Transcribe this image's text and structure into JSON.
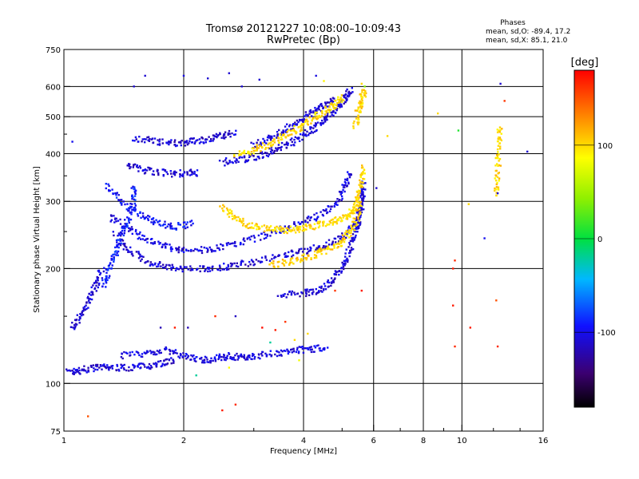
{
  "chart_data": {
    "type": "scatter",
    "title": "Tromsø 20121227 10:08:00–10:09:43",
    "subtitle": "RwPretec (Bp)",
    "xlabel": "Frequency [MHz]",
    "ylabel": "Stationary phase Virtual Height [km]",
    "x_scale": "log",
    "y_scale": "log",
    "xlim": [
      1,
      16
    ],
    "ylim": [
      75,
      750
    ],
    "x_ticks": [
      1,
      2,
      4,
      6,
      8,
      10,
      16
    ],
    "x_tick_labels": [
      "1",
      "2",
      "4",
      "6",
      "8",
      "10",
      "16"
    ],
    "y_ticks": [
      75,
      100,
      200,
      300,
      400,
      500,
      600,
      750
    ],
    "y_tick_labels": [
      "75",
      "100",
      "200",
      "300",
      "400",
      "500",
      "600",
      "750"
    ],
    "grid": true,
    "stats": {
      "heading": "Phases",
      "o_line": "mean, sd,O: -89.4, 17.2",
      "x_line": "mean, sd,X: 85.1, 21.0"
    },
    "colorbar": {
      "label": "[deg]",
      "range": [
        -180,
        180
      ],
      "ticks": [
        100,
        0,
        -100
      ],
      "tick_labels": [
        "100",
        "0",
        "-100"
      ]
    },
    "traces": [
      {
        "phase": -110,
        "points": [
          [
            1.03,
            107
          ],
          [
            1.1,
            108
          ],
          [
            1.2,
            110
          ],
          [
            1.3,
            110
          ],
          [
            1.45,
            110
          ],
          [
            1.6,
            111
          ],
          [
            1.75,
            113
          ],
          [
            1.9,
            115
          ]
        ]
      },
      {
        "phase": -105,
        "points": [
          [
            1.4,
            118
          ],
          [
            1.6,
            120
          ],
          [
            1.8,
            122
          ],
          [
            2.0,
            118
          ],
          [
            2.2,
            115
          ],
          [
            2.4,
            116
          ],
          [
            2.6,
            118
          ],
          [
            2.8,
            117
          ],
          [
            3.0,
            118
          ],
          [
            3.4,
            120
          ],
          [
            3.8,
            122
          ],
          [
            4.2,
            123
          ],
          [
            4.6,
            124
          ]
        ]
      },
      {
        "phase": -110,
        "points": [
          [
            1.05,
            140
          ],
          [
            1.1,
            150
          ],
          [
            1.15,
            165
          ],
          [
            1.2,
            180
          ],
          [
            1.25,
            200
          ]
        ]
      },
      {
        "phase": -110,
        "points": [
          [
            1.35,
            245
          ],
          [
            1.45,
            225
          ],
          [
            1.6,
            210
          ],
          [
            1.8,
            202
          ],
          [
            2.0,
            199
          ],
          [
            2.3,
            200
          ],
          [
            2.6,
            203
          ],
          [
            3.0,
            208
          ],
          [
            3.5,
            215
          ],
          [
            4.0,
            222
          ],
          [
            4.5,
            230
          ],
          [
            5.0,
            242
          ],
          [
            5.4,
            260
          ],
          [
            5.6,
            290
          ],
          [
            5.7,
            330
          ]
        ]
      },
      {
        "phase": -105,
        "points": [
          [
            1.3,
            275
          ],
          [
            1.45,
            255
          ],
          [
            1.6,
            238
          ],
          [
            1.8,
            228
          ],
          [
            2.0,
            223
          ],
          [
            2.3,
            224
          ],
          [
            2.6,
            230
          ],
          [
            3.0,
            240
          ],
          [
            3.5,
            252
          ],
          [
            4.0,
            265
          ],
          [
            4.5,
            280
          ],
          [
            4.9,
            300
          ],
          [
            5.1,
            330
          ],
          [
            5.25,
            360
          ]
        ]
      },
      {
        "phase": -95,
        "points": [
          [
            1.28,
            330
          ],
          [
            1.4,
            300
          ],
          [
            1.55,
            278
          ],
          [
            1.7,
            265
          ],
          [
            1.9,
            258
          ],
          [
            2.1,
            262
          ]
        ]
      },
      {
        "phase": -110,
        "points": [
          [
            1.45,
            375
          ],
          [
            1.6,
            362
          ],
          [
            1.8,
            355
          ],
          [
            2.0,
            355
          ],
          [
            2.2,
            357
          ]
        ]
      },
      {
        "phase": -110,
        "points": [
          [
            1.5,
            440
          ],
          [
            1.7,
            430
          ],
          [
            1.9,
            426
          ],
          [
            2.1,
            430
          ],
          [
            2.3,
            435
          ],
          [
            2.5,
            445
          ],
          [
            2.7,
            455
          ]
        ]
      },
      {
        "phase": -110,
        "points": [
          [
            2.5,
            380
          ],
          [
            2.8,
            385
          ],
          [
            3.1,
            395
          ],
          [
            3.4,
            410
          ],
          [
            3.7,
            425
          ],
          [
            4.0,
            445
          ],
          [
            4.3,
            470
          ],
          [
            4.6,
            500
          ],
          [
            4.9,
            530
          ],
          [
            5.1,
            560
          ],
          [
            5.25,
            590
          ]
        ]
      },
      {
        "phase": -110,
        "points": [
          [
            3.0,
            420
          ],
          [
            3.3,
            440
          ],
          [
            3.6,
            462
          ],
          [
            3.9,
            487
          ],
          [
            4.2,
            512
          ],
          [
            4.5,
            535
          ],
          [
            4.8,
            555
          ]
        ]
      },
      {
        "phase": -110,
        "points": [
          [
            3.5,
            170
          ],
          [
            4.0,
            172
          ],
          [
            4.4,
            175
          ],
          [
            4.7,
            185
          ],
          [
            5.0,
            200
          ],
          [
            5.2,
            220
          ],
          [
            5.4,
            245
          ],
          [
            5.5,
            270
          ],
          [
            5.6,
            300
          ],
          [
            5.65,
            340
          ]
        ]
      },
      {
        "phase": -90,
        "points": [
          [
            1.25,
            180
          ],
          [
            1.3,
            200
          ],
          [
            1.35,
            220
          ],
          [
            1.4,
            245
          ],
          [
            1.45,
            270
          ],
          [
            1.5,
            300
          ],
          [
            1.5,
            330
          ]
        ]
      },
      {
        "phase": 100,
        "points": [
          [
            2.5,
            290
          ],
          [
            2.7,
            272
          ],
          [
            2.9,
            260
          ],
          [
            3.2,
            254
          ],
          [
            3.5,
            252
          ],
          [
            3.8,
            253
          ],
          [
            4.1,
            257
          ],
          [
            4.5,
            262
          ],
          [
            4.9,
            268
          ],
          [
            5.2,
            275
          ],
          [
            5.4,
            290
          ],
          [
            5.5,
            310
          ],
          [
            5.6,
            340
          ],
          [
            5.65,
            370
          ]
        ]
      },
      {
        "phase": 105,
        "points": [
          [
            3.3,
            205
          ],
          [
            3.7,
            208
          ],
          [
            4.1,
            214
          ],
          [
            4.5,
            222
          ],
          [
            4.9,
            232
          ],
          [
            5.2,
            246
          ],
          [
            5.45,
            268
          ],
          [
            5.6,
            300
          ]
        ]
      },
      {
        "phase": 100,
        "points": [
          [
            2.7,
            395
          ],
          [
            3.0,
            410
          ],
          [
            3.3,
            425
          ],
          [
            3.6,
            445
          ],
          [
            3.9,
            468
          ],
          [
            4.2,
            492
          ],
          [
            4.5,
            515
          ],
          [
            4.8,
            540
          ],
          [
            5.0,
            560
          ]
        ]
      },
      {
        "phase": 100,
        "points": [
          [
            5.4,
            470
          ],
          [
            5.5,
            520
          ],
          [
            5.6,
            560
          ],
          [
            5.7,
            590
          ]
        ]
      },
      {
        "phase": 100,
        "points": [
          [
            12.2,
            310
          ],
          [
            12.3,
            360
          ],
          [
            12.4,
            420
          ],
          [
            12.45,
            470
          ]
        ]
      }
    ],
    "scatter_points": [
      {
        "x": 1.05,
        "y": 430,
        "phase": -100
      },
      {
        "x": 1.5,
        "y": 600,
        "phase": -110
      },
      {
        "x": 1.6,
        "y": 640,
        "phase": -110
      },
      {
        "x": 2.0,
        "y": 640,
        "phase": -105
      },
      {
        "x": 2.3,
        "y": 630,
        "phase": -110
      },
      {
        "x": 2.6,
        "y": 650,
        "phase": -110
      },
      {
        "x": 2.8,
        "y": 600,
        "phase": -110
      },
      {
        "x": 3.1,
        "y": 625,
        "phase": -110
      },
      {
        "x": 4.3,
        "y": 640,
        "phase": -105
      },
      {
        "x": 4.5,
        "y": 620,
        "phase": 90
      },
      {
        "x": 5.6,
        "y": 610,
        "phase": 100
      },
      {
        "x": 5.7,
        "y": 600,
        "phase": 40
      },
      {
        "x": 4.8,
        "y": 175,
        "phase": 160
      },
      {
        "x": 5.6,
        "y": 175,
        "phase": 170
      },
      {
        "x": 1.9,
        "y": 140,
        "phase": 170
      },
      {
        "x": 2.05,
        "y": 140,
        "phase": -120
      },
      {
        "x": 2.4,
        "y": 150,
        "phase": 165
      },
      {
        "x": 2.7,
        "y": 150,
        "phase": -115
      },
      {
        "x": 3.15,
        "y": 140,
        "phase": 175
      },
      {
        "x": 3.4,
        "y": 138,
        "phase": 170
      },
      {
        "x": 3.6,
        "y": 145,
        "phase": 160
      },
      {
        "x": 3.3,
        "y": 128,
        "phase": -20
      },
      {
        "x": 3.8,
        "y": 130,
        "phase": 100
      },
      {
        "x": 4.1,
        "y": 135,
        "phase": 100
      },
      {
        "x": 3.9,
        "y": 115,
        "phase": 80
      },
      {
        "x": 2.6,
        "y": 110,
        "phase": 85
      },
      {
        "x": 2.7,
        "y": 88,
        "phase": 165
      },
      {
        "x": 2.5,
        "y": 85,
        "phase": 170
      },
      {
        "x": 1.15,
        "y": 82,
        "phase": 150
      },
      {
        "x": 1.75,
        "y": 140,
        "phase": -120
      },
      {
        "x": 1.85,
        "y": 122,
        "phase": -115
      },
      {
        "x": 2.15,
        "y": 105,
        "phase": -20
      },
      {
        "x": 9.5,
        "y": 200,
        "phase": 170
      },
      {
        "x": 9.6,
        "y": 210,
        "phase": 165
      },
      {
        "x": 9.5,
        "y": 160,
        "phase": 170
      },
      {
        "x": 9.6,
        "y": 125,
        "phase": 165
      },
      {
        "x": 10.5,
        "y": 140,
        "phase": 170
      },
      {
        "x": 12.2,
        "y": 165,
        "phase": 150
      },
      {
        "x": 12.3,
        "y": 125,
        "phase": 165
      },
      {
        "x": 11.4,
        "y": 240,
        "phase": -100
      },
      {
        "x": 12.3,
        "y": 315,
        "phase": -110
      },
      {
        "x": 12.5,
        "y": 610,
        "phase": -110
      },
      {
        "x": 12.8,
        "y": 550,
        "phase": 160
      },
      {
        "x": 14.6,
        "y": 405,
        "phase": -110
      },
      {
        "x": 9.8,
        "y": 460,
        "phase": 10
      },
      {
        "x": 8.7,
        "y": 510,
        "phase": 100
      },
      {
        "x": 6.5,
        "y": 445,
        "phase": 100
      },
      {
        "x": 6.1,
        "y": 325,
        "phase": -110
      },
      {
        "x": 10.4,
        "y": 295,
        "phase": 100
      },
      {
        "x": 12.3,
        "y": 455,
        "phase": 100
      }
    ]
  }
}
